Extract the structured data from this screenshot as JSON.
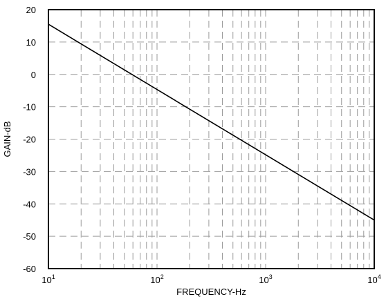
{
  "chart_data": {
    "type": "line",
    "title": "",
    "xlabel": "FREQUENCY-Hz",
    "ylabel": "GAIN-dB",
    "x_scale": "log",
    "xlim": [
      10,
      10000
    ],
    "ylim": [
      -60,
      20
    ],
    "x_tick_labels": [
      {
        "base": "10",
        "exp": "1"
      },
      {
        "base": "10",
        "exp": "2"
      },
      {
        "base": "10",
        "exp": "3"
      },
      {
        "base": "10",
        "exp": "4"
      }
    ],
    "y_tick_labels": [
      "20",
      "10",
      "0",
      "-10",
      "-20",
      "-30",
      "-40",
      "-50",
      "-60"
    ],
    "grid": true,
    "grid_style": "dashed",
    "legend": "none",
    "line_color": "#000000",
    "grid_color": "#9a9a9a",
    "series": [
      {
        "x": [
          10,
          10000
        ],
        "y": [
          15.5,
          -45
        ]
      }
    ]
  }
}
